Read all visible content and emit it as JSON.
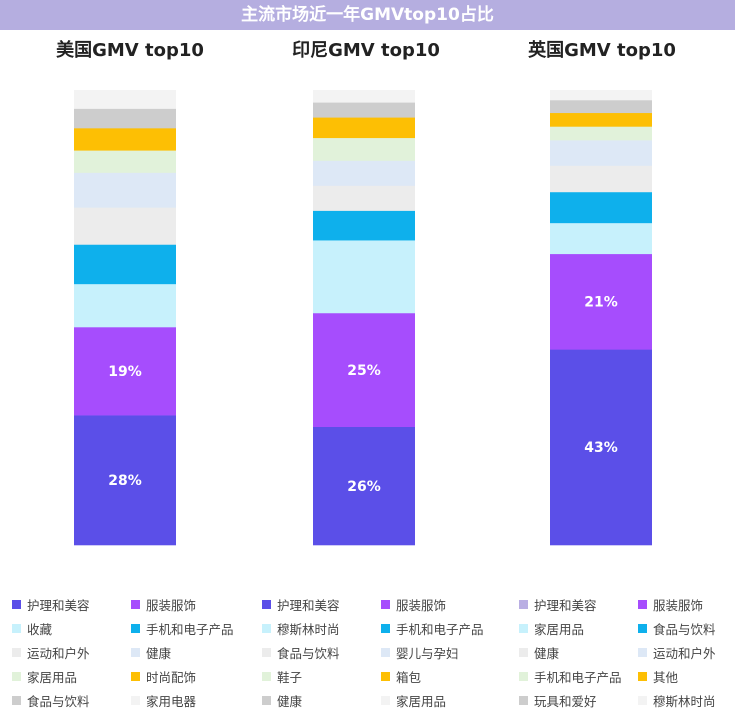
{
  "header": {
    "title": "主流市场近一年GMVtop10占比"
  },
  "colors": {
    "bg": "#ffffff",
    "banner": "#b5aee0"
  },
  "chart_data": [
    {
      "type": "bar",
      "stacked": true,
      "title": "美国GMV top10",
      "unit": "%",
      "segments": [
        {
          "name": "护理和美容",
          "value": 28,
          "color": "#5b4fe8",
          "label": "28%"
        },
        {
          "name": "服装服饰",
          "value": 19,
          "color": "#a64dfd",
          "label": "19%"
        },
        {
          "name": "收藏",
          "value": 9.3,
          "color": "#c7f1fc"
        },
        {
          "name": "手机和电子产品",
          "value": 8.5,
          "color": "#0eb0ec"
        },
        {
          "name": "运动和户外",
          "value": 8.0,
          "color": "#ececec"
        },
        {
          "name": "健康",
          "value": 7.5,
          "color": "#dde8f6"
        },
        {
          "name": "家居用品",
          "value": 4.8,
          "color": "#e1f2da"
        },
        {
          "name": "时尚配饰",
          "value": 4.8,
          "color": "#fdbf04"
        },
        {
          "name": "食品与饮料",
          "value": 4.2,
          "color": "#cdcdcd"
        },
        {
          "name": "家用电器",
          "value": 4.0,
          "color": "#f3f3f3"
        }
      ]
    },
    {
      "type": "bar",
      "stacked": true,
      "title": "印尼GMV top10",
      "unit": "%",
      "segments": [
        {
          "name": "护理和美容",
          "value": 26,
          "color": "#5b4fe8",
          "label": "26%"
        },
        {
          "name": "服装服饰",
          "value": 25,
          "color": "#a64dfd",
          "label": "25%"
        },
        {
          "name": "穆斯林时尚",
          "value": 16,
          "color": "#c7f1fc"
        },
        {
          "name": "手机和电子产品",
          "value": 6.5,
          "color": "#0eb0ec"
        },
        {
          "name": "食品与饮料",
          "value": 5.5,
          "color": "#ececec"
        },
        {
          "name": "婴儿与孕妇",
          "value": 5.5,
          "color": "#dde8f6"
        },
        {
          "name": "鞋子",
          "value": 5.0,
          "color": "#e1f2da"
        },
        {
          "name": "箱包",
          "value": 4.5,
          "color": "#fdbf04"
        },
        {
          "name": "健康",
          "value": 3.3,
          "color": "#cdcdcd"
        },
        {
          "name": "家居用品",
          "value": 2.7,
          "color": "#f3f3f3"
        }
      ]
    },
    {
      "type": "bar",
      "stacked": true,
      "title": "英国GMV top10",
      "unit": "%",
      "segments": [
        {
          "name": "护理和美容",
          "value": 43,
          "color": "#5b4fe8",
          "label": "43%"
        },
        {
          "name": "服装服饰",
          "value": 21,
          "color": "#a64dfd",
          "label": "21%"
        },
        {
          "name": "家居用品",
          "value": 6.8,
          "color": "#c7f1fc"
        },
        {
          "name": "食品与饮料",
          "value": 6.8,
          "color": "#0eb0ec"
        },
        {
          "name": "健康",
          "value": 5.8,
          "color": "#ececec"
        },
        {
          "name": "运动和户外",
          "value": 5.6,
          "color": "#dde8f6"
        },
        {
          "name": "手机和电子产品",
          "value": 3.0,
          "color": "#e1f2da"
        },
        {
          "name": "其他",
          "value": 3.0,
          "color": "#fdbf04"
        },
        {
          "name": "玩具和爱好",
          "value": 2.8,
          "color": "#cdcdcd"
        },
        {
          "name": "穆斯林时尚",
          "value": 2.2,
          "color": "#f3f3f3"
        }
      ]
    }
  ],
  "legend": [
    {
      "label": "护理和美容",
      "color": "#5b4fe8"
    },
    {
      "label": "服装服饰",
      "color": "#a64dfd"
    },
    {
      "label": "收藏",
      "color": "#c7f1fc"
    },
    {
      "label": "手机和电子产品",
      "color": "#0eb0ec"
    },
    {
      "label": "运动和户外",
      "color": "#ececec"
    },
    {
      "label": "健康",
      "color": "#dde8f6"
    },
    {
      "label": "家居用品",
      "color": "#e1f2da"
    },
    {
      "label": "时尚配饰",
      "color": "#fdbf04"
    },
    {
      "label": "食品与饮料",
      "color": "#cdcdcd"
    },
    {
      "label": "家用电器",
      "color": "#f3f3f3"
    },
    {
      "label": "护理和美容",
      "color": "#5b4fe8"
    },
    {
      "label": "服装服饰",
      "color": "#a64dfd"
    },
    {
      "label": "穆斯林时尚",
      "color": "#c7f1fc"
    },
    {
      "label": "手机和电子产品",
      "color": "#0eb0ec"
    },
    {
      "label": "食品与饮料",
      "color": "#ececec"
    },
    {
      "label": "婴儿与孕妇",
      "color": "#dde8f6"
    },
    {
      "label": "鞋子",
      "color": "#e1f2da"
    },
    {
      "label": "箱包",
      "color": "#fdbf04"
    },
    {
      "label": "健康",
      "color": "#cdcdcd"
    },
    {
      "label": "家居用品",
      "color": "#f3f3f3"
    },
    {
      "label": "护理和美容",
      "color": "#b9aee3"
    },
    {
      "label": "服装服饰",
      "color": "#a64dfd"
    },
    {
      "label": "家居用品",
      "color": "#c7f1fc"
    },
    {
      "label": "食品与饮料",
      "color": "#0eb0ec"
    },
    {
      "label": "健康",
      "color": "#ececec"
    },
    {
      "label": "运动和户外",
      "color": "#dde8f6"
    },
    {
      "label": "手机和电子产品",
      "color": "#e1f2da"
    },
    {
      "label": "其他",
      "color": "#fdbf04"
    },
    {
      "label": "玩具和爱好",
      "color": "#cdcdcd"
    },
    {
      "label": "穆斯林时尚",
      "color": "#f3f3f3"
    }
  ]
}
